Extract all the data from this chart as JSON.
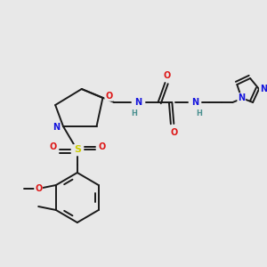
{
  "bg_color": "#e8e8e8",
  "bond_color": "#1a1a1a",
  "bond_lw": 1.4,
  "figsize": [
    3.0,
    3.0
  ],
  "dpi": 100,
  "colors": {
    "N": "#1515dd",
    "O": "#dd1515",
    "S": "#cccc00",
    "H": "#4a9090",
    "C": "#1a1a1a"
  },
  "fs": 7.0,
  "fs_small": 6.0
}
